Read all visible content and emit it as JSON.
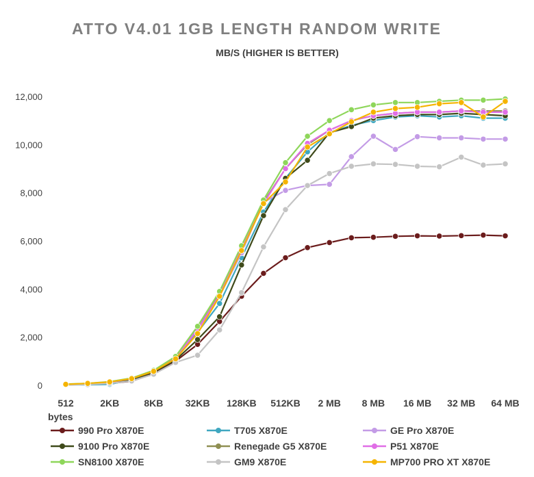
{
  "chart_data": {
    "type": "line",
    "title": "ATTO V4.01 1GB LENGTH RANDOM WRITE",
    "subtitle": "MB/S (HIGHER IS BETTER)",
    "xlabel": "bytes",
    "ylabel": "",
    "ylim": [
      0,
      12000
    ],
    "yticks": [
      0,
      2000,
      4000,
      6000,
      8000,
      10000,
      12000
    ],
    "ytick_labels": [
      "0",
      "2,000",
      "4,000",
      "6,000",
      "8,000",
      "10,000",
      "12,000"
    ],
    "x": [
      "512",
      "1KB",
      "2KB",
      "4KB",
      "8KB",
      "16KB",
      "32KB",
      "64KB",
      "128KB",
      "256KB",
      "512KB",
      "1 MB",
      "2 MB",
      "4 MB",
      "8 MB",
      "12 MB",
      "16 MB",
      "24 MB",
      "32 MB",
      "48 MB",
      "64 MB"
    ],
    "xtick_labels": [
      "512",
      "",
      "2KB",
      "",
      "8KB",
      "",
      "32KB",
      "",
      "128KB",
      "",
      "512KB",
      "",
      "2 MB",
      "",
      "8 MB",
      "",
      "16 MB",
      "",
      "32 MB",
      "",
      "64 MB"
    ],
    "grid": false,
    "legend_position": "bottom",
    "series": [
      {
        "name": "990 Pro X870E",
        "color": "#6b1c1c",
        "values": [
          20,
          40,
          80,
          170,
          480,
          1000,
          1700,
          2650,
          3700,
          4650,
          5300,
          5720,
          5930,
          6130,
          6150,
          6190,
          6210,
          6200,
          6220,
          6240,
          6210
        ]
      },
      {
        "name": "T705 X870E",
        "color": "#3fa7c0",
        "values": [
          30,
          20,
          40,
          230,
          560,
          1100,
          2200,
          3400,
          5300,
          7200,
          8600,
          9700,
          10500,
          10800,
          11000,
          11150,
          11200,
          11150,
          11200,
          11100,
          11100
        ]
      },
      {
        "name": "GE Pro X870E",
        "color": "#c39be6",
        "values": [
          40,
          60,
          110,
          250,
          580,
          1150,
          2400,
          3700,
          5500,
          7600,
          8100,
          8300,
          8350,
          9500,
          10350,
          9800,
          10330,
          10280,
          10280,
          10230,
          10230
        ]
      },
      {
        "name": "9100 Pro X870E",
        "color": "#3f4a1a",
        "values": [
          30,
          60,
          110,
          240,
          540,
          1050,
          1900,
          2850,
          5000,
          7050,
          8600,
          9350,
          10500,
          10750,
          11100,
          11200,
          11250,
          11250,
          11300,
          11250,
          11200
        ]
      },
      {
        "name": "Renegade G5 X870E",
        "color": "#8f8f52",
        "values": [
          40,
          70,
          130,
          270,
          600,
          1150,
          2300,
          3800,
          5700,
          7600,
          9000,
          10000,
          10600,
          11000,
          11200,
          11300,
          11350,
          11350,
          11400,
          11400,
          11400
        ]
      },
      {
        "name": "P51 X870E",
        "color": "#e06ee6",
        "values": [
          40,
          70,
          130,
          280,
          600,
          1150,
          2300,
          3750,
          5700,
          7550,
          9000,
          10050,
          10600,
          11000,
          11200,
          11300,
          11350,
          11350,
          11400,
          11350,
          11350
        ]
      },
      {
        "name": "SN8100 X870E",
        "color": "#8ed65a",
        "values": [
          50,
          80,
          150,
          300,
          620,
          1200,
          2450,
          3900,
          5800,
          7700,
          9250,
          10350,
          11000,
          11450,
          11650,
          11750,
          11750,
          11800,
          11850,
          11850,
          11900
        ]
      },
      {
        "name": "GM9 X870E",
        "color": "#c4c4c4",
        "values": [
          20,
          30,
          80,
          180,
          460,
          950,
          1250,
          2300,
          3850,
          5750,
          7300,
          8300,
          8800,
          9100,
          9200,
          9180,
          9100,
          9080,
          9480,
          9150,
          9200
        ]
      },
      {
        "name": "MP700 PRO XT X870E",
        "color": "#f5b400",
        "values": [
          40,
          80,
          140,
          280,
          580,
          1100,
          2150,
          3700,
          5600,
          7550,
          8450,
          9900,
          10450,
          10950,
          11350,
          11500,
          11550,
          11700,
          11750,
          11150,
          11800
        ]
      }
    ]
  }
}
